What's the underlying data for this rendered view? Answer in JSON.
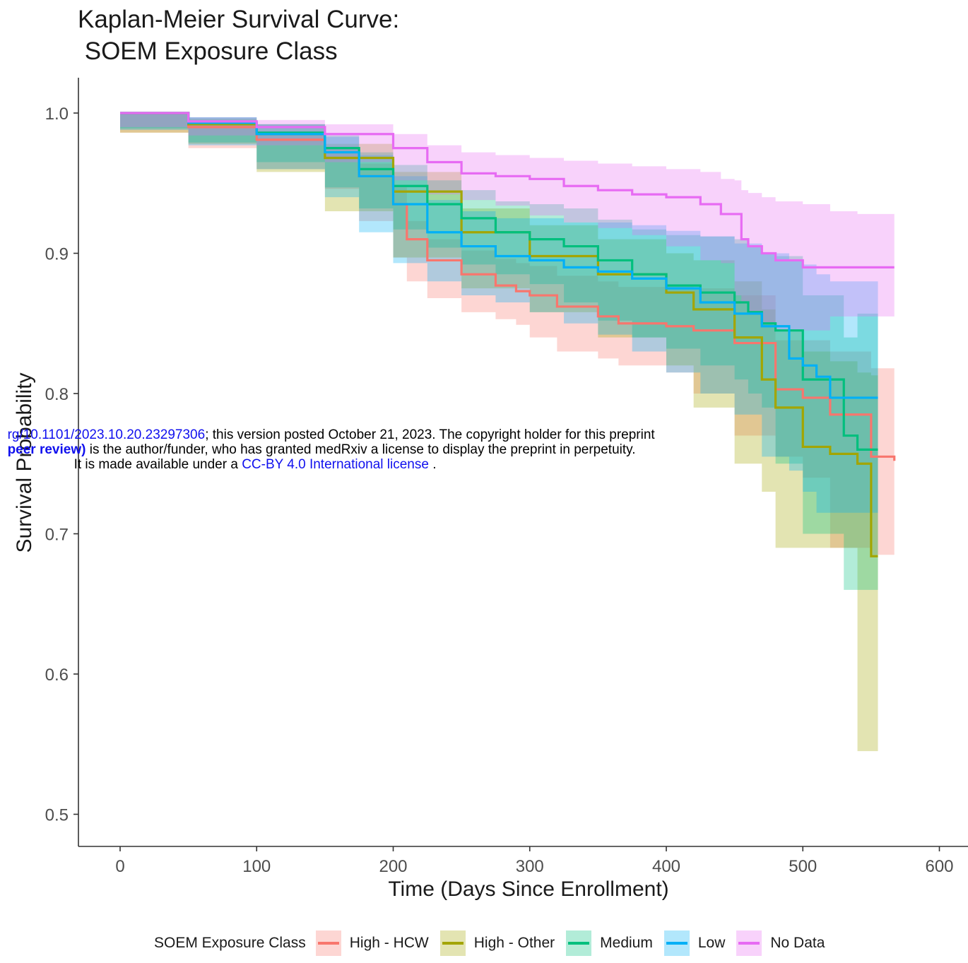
{
  "page": {
    "title_line1": "Kaplan-Meier Survival Curve:",
    "title_line2": " SOEM Exposure Class"
  },
  "watermark": {
    "line1_link": "rg/10.1101/2023.10.20.23297306",
    "line1_text": "; this version posted October 21, 2023. The copyright holder for this preprint",
    "line2_bold": "peer review)",
    "line2_text": " is the author/funder, who has granted medRxiv a license to display the preprint in perpetuity.",
    "line3_text1": "It is made available under a ",
    "line3_link": "CC-BY 4.0 International license",
    "line3_text2": " ."
  },
  "chart_data": {
    "type": "line",
    "title": "Kaplan-Meier Survival Curve:\n SOEM Exposure Class",
    "xlabel": "Time (Days Since Enrollment)",
    "ylabel": "Survival Probability",
    "xlim": [
      -30,
      610
    ],
    "ylim": [
      0.475,
      1.025
    ],
    "xticks": [
      0,
      100,
      200,
      300,
      400,
      500,
      600
    ],
    "yticks": [
      0.5,
      0.6,
      0.7,
      0.8,
      0.9,
      1.0
    ],
    "xtick_labels": [
      "0",
      "100",
      "200",
      "300",
      "400",
      "500",
      "600"
    ],
    "ytick_labels": [
      "0.5",
      "0.6",
      "0.7",
      "0.8",
      "0.9",
      "1.0"
    ],
    "grid": false,
    "legend_position": "bottom",
    "legend_title": "SOEM Exposure Class",
    "series": [
      {
        "name": "High - HCW",
        "color": "#f8766d",
        "x": [
          0,
          50,
          100,
          150,
          175,
          200,
          210,
          225,
          250,
          275,
          290,
          300,
          320,
          350,
          365,
          400,
          420,
          450,
          480,
          500,
          520,
          550,
          567
        ],
        "y": [
          1.0,
          0.99,
          0.981,
          0.968,
          0.955,
          0.935,
          0.91,
          0.895,
          0.885,
          0.877,
          0.873,
          0.87,
          0.862,
          0.855,
          0.85,
          0.848,
          0.845,
          0.836,
          0.803,
          0.797,
          0.785,
          0.755,
          0.752
        ],
        "lower": [
          1.0,
          0.986,
          0.975,
          0.96,
          0.946,
          0.923,
          0.897,
          0.88,
          0.868,
          0.858,
          0.853,
          0.849,
          0.84,
          0.83,
          0.825,
          0.82,
          0.815,
          0.8,
          0.77,
          0.755,
          0.74,
          0.69,
          0.685
        ],
        "upper": [
          1.0,
          0.994,
          0.987,
          0.976,
          0.964,
          0.947,
          0.923,
          0.91,
          0.902,
          0.896,
          0.893,
          0.891,
          0.884,
          0.88,
          0.876,
          0.876,
          0.875,
          0.87,
          0.838,
          0.838,
          0.83,
          0.818,
          0.818
        ]
      },
      {
        "name": "High - Other",
        "color": "#a3a500",
        "x": [
          0,
          50,
          100,
          150,
          200,
          250,
          300,
          350,
          400,
          420,
          450,
          470,
          480,
          500,
          520,
          540,
          550,
          555
        ],
        "y": [
          1.0,
          0.992,
          0.985,
          0.968,
          0.944,
          0.915,
          0.898,
          0.885,
          0.872,
          0.86,
          0.84,
          0.81,
          0.79,
          0.762,
          0.757,
          0.75,
          0.684,
          0.684
        ],
        "lower": [
          1.0,
          0.986,
          0.978,
          0.958,
          0.93,
          0.897,
          0.875,
          0.858,
          0.84,
          0.82,
          0.79,
          0.75,
          0.73,
          0.69,
          0.69,
          0.69,
          0.545,
          0.545
        ],
        "upper": [
          1.0,
          0.996,
          0.992,
          0.978,
          0.958,
          0.932,
          0.92,
          0.91,
          0.9,
          0.895,
          0.88,
          0.86,
          0.845,
          0.83,
          0.823,
          0.815,
          0.813,
          0.813
        ]
      },
      {
        "name": "Medium",
        "color": "#00bf7d",
        "x": [
          0,
          50,
          100,
          150,
          175,
          200,
          225,
          250,
          275,
          300,
          325,
          350,
          375,
          400,
          425,
          450,
          460,
          470,
          480,
          500,
          530,
          540,
          555
        ],
        "y": [
          1.0,
          0.993,
          0.986,
          0.975,
          0.96,
          0.948,
          0.935,
          0.925,
          0.915,
          0.91,
          0.905,
          0.895,
          0.885,
          0.877,
          0.872,
          0.865,
          0.858,
          0.85,
          0.845,
          0.81,
          0.77,
          0.76,
          0.76
        ],
        "lower": [
          1.0,
          0.989,
          0.979,
          0.965,
          0.947,
          0.932,
          0.917,
          0.904,
          0.892,
          0.885,
          0.878,
          0.865,
          0.852,
          0.84,
          0.832,
          0.82,
          0.81,
          0.8,
          0.79,
          0.75,
          0.7,
          0.66,
          0.66
        ],
        "upper": [
          1.0,
          0.997,
          0.992,
          0.984,
          0.972,
          0.963,
          0.952,
          0.945,
          0.937,
          0.935,
          0.932,
          0.924,
          0.917,
          0.913,
          0.912,
          0.91,
          0.905,
          0.9,
          0.898,
          0.87,
          0.84,
          0.857,
          0.857
        ]
      },
      {
        "name": "Low",
        "color": "#00b0f6",
        "x": [
          0,
          50,
          100,
          150,
          175,
          200,
          225,
          250,
          275,
          300,
          325,
          350,
          375,
          400,
          425,
          450,
          470,
          490,
          500,
          510,
          520,
          555
        ],
        "y": [
          1.0,
          0.993,
          0.985,
          0.972,
          0.955,
          0.935,
          0.915,
          0.905,
          0.898,
          0.895,
          0.89,
          0.887,
          0.882,
          0.875,
          0.865,
          0.857,
          0.848,
          0.825,
          0.82,
          0.812,
          0.797,
          0.797
        ],
        "lower": [
          1.0,
          0.988,
          0.977,
          0.96,
          0.94,
          0.915,
          0.893,
          0.88,
          0.87,
          0.865,
          0.858,
          0.85,
          0.842,
          0.83,
          0.815,
          0.8,
          0.785,
          0.755,
          0.745,
          0.73,
          0.715,
          0.715
        ],
        "upper": [
          1.0,
          0.997,
          0.992,
          0.983,
          0.97,
          0.955,
          0.938,
          0.93,
          0.925,
          0.925,
          0.922,
          0.922,
          0.92,
          0.916,
          0.912,
          0.907,
          0.9,
          0.895,
          0.892,
          0.885,
          0.88,
          0.88
        ]
      },
      {
        "name": "No Data",
        "color": "#e76bf3",
        "x": [
          0,
          50,
          100,
          150,
          200,
          225,
          250,
          275,
          300,
          325,
          350,
          375,
          400,
          425,
          440,
          450,
          455,
          460,
          470,
          480,
          500,
          520,
          540,
          567
        ],
        "y": [
          1.0,
          0.994,
          0.99,
          0.985,
          0.975,
          0.965,
          0.957,
          0.955,
          0.953,
          0.948,
          0.945,
          0.942,
          0.94,
          0.935,
          0.928,
          0.928,
          0.91,
          0.905,
          0.9,
          0.895,
          0.89,
          0.89,
          0.89,
          0.89
        ],
        "lower": [
          1.0,
          0.99,
          0.984,
          0.977,
          0.965,
          0.952,
          0.942,
          0.938,
          0.934,
          0.927,
          0.922,
          0.918,
          0.913,
          0.905,
          0.895,
          0.893,
          0.87,
          0.864,
          0.857,
          0.85,
          0.845,
          0.845,
          0.855,
          0.855
        ],
        "upper": [
          1.0,
          0.997,
          0.995,
          0.992,
          0.985,
          0.977,
          0.972,
          0.97,
          0.968,
          0.966,
          0.964,
          0.962,
          0.96,
          0.958,
          0.953,
          0.952,
          0.945,
          0.943,
          0.94,
          0.937,
          0.935,
          0.93,
          0.928,
          0.928
        ]
      }
    ]
  }
}
